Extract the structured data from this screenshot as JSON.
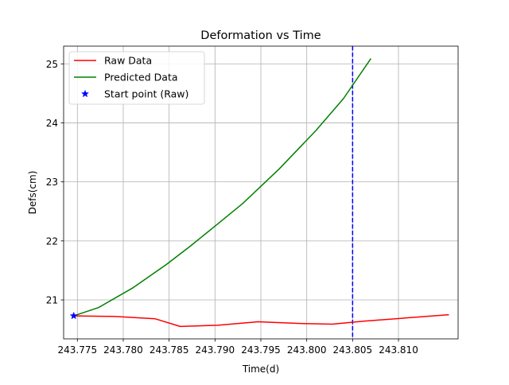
{
  "chart_data": {
    "type": "line",
    "title": "Deformation vs Time",
    "xlabel": "Time(d)",
    "ylabel": "Defs(cm)",
    "xlim": [
      243.7735,
      243.8165
    ],
    "ylim": [
      20.34,
      25.3
    ],
    "x_ticks": [
      243.775,
      243.78,
      243.785,
      243.79,
      243.795,
      243.8,
      243.805,
      243.81
    ],
    "x_tick_labels": [
      "243.775",
      "243.780",
      "243.785",
      "243.790",
      "243.795",
      "243.800",
      "243.805",
      "243.810"
    ],
    "y_ticks": [
      21,
      22,
      23,
      24,
      25
    ],
    "y_tick_labels": [
      "21",
      "22",
      "23",
      "24",
      "25"
    ],
    "grid": true,
    "legend_position": "top-left",
    "series": [
      {
        "name": "Raw Data",
        "color": "#ff0000",
        "style": "solid",
        "x": [
          243.7746,
          243.779,
          243.7835,
          243.7862,
          243.7903,
          243.7947,
          243.7995,
          243.8028,
          243.8062,
          243.8113,
          243.8155
        ],
        "y": [
          20.73,
          20.72,
          20.68,
          20.55,
          20.57,
          20.63,
          20.6,
          20.59,
          20.64,
          20.7,
          20.75
        ]
      },
      {
        "name": "Predicted Data",
        "color": "#008000",
        "style": "solid",
        "x": [
          243.7746,
          243.7773,
          243.781,
          243.7847,
          243.7873,
          243.79,
          243.793,
          243.797,
          243.801,
          243.804,
          243.807
        ],
        "y": [
          20.73,
          20.87,
          21.2,
          21.6,
          21.91,
          22.25,
          22.63,
          23.22,
          23.87,
          24.41,
          25.09
        ]
      }
    ],
    "markers": [
      {
        "name": "Start point (Raw)",
        "marker": "star",
        "color": "#0000ff",
        "x": 243.7746,
        "y": 20.73
      }
    ],
    "vlines": [
      {
        "x": 243.805,
        "color": "#0000ff",
        "style": "dashed"
      }
    ]
  }
}
